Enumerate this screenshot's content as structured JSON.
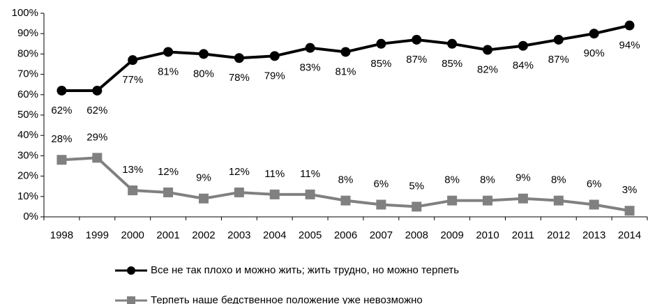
{
  "chart_data": {
    "type": "line",
    "categories": [
      "1998",
      "1999",
      "2000",
      "2001",
      "2002",
      "2003",
      "2004",
      "2005",
      "2006",
      "2007",
      "2008",
      "2009",
      "2010",
      "2011",
      "2012",
      "2013",
      "2014"
    ],
    "series": [
      {
        "name": "Все не так плохо и можно жить; жить трудно, но можно терпеть",
        "color": "#000000",
        "marker": "circle",
        "values": [
          62,
          62,
          77,
          81,
          80,
          78,
          79,
          83,
          81,
          85,
          87,
          85,
          82,
          84,
          87,
          90,
          94
        ],
        "value_labels": [
          "62%",
          "62%",
          "77%",
          "81%",
          "80%",
          "78%",
          "79%",
          "83%",
          "81%",
          "85%",
          "87%",
          "85%",
          "82%",
          "84%",
          "87%",
          "90%",
          "94%"
        ]
      },
      {
        "name": "Терпеть наше бедственное положение уже невозможно",
        "color": "#808080",
        "marker": "square",
        "values": [
          28,
          29,
          13,
          12,
          9,
          12,
          11,
          11,
          8,
          6,
          5,
          8,
          8,
          9,
          8,
          6,
          3
        ],
        "value_labels": [
          "28%",
          "29%",
          "13%",
          "12%",
          "9%",
          "12%",
          "11%",
          "11%",
          "8%",
          "6%",
          "5%",
          "8%",
          "8%",
          "9%",
          "8%",
          "6%",
          "3%"
        ]
      }
    ],
    "ylim": [
      0,
      100
    ],
    "yticks": [
      {
        "value": 0,
        "label": "0%"
      },
      {
        "value": 10,
        "label": "10%"
      },
      {
        "value": 20,
        "label": "20%"
      },
      {
        "value": 30,
        "label": "30%"
      },
      {
        "value": 40,
        "label": "40%"
      },
      {
        "value": 50,
        "label": "50%"
      },
      {
        "value": 60,
        "label": "60%"
      },
      {
        "value": 70,
        "label": "70%"
      },
      {
        "value": 80,
        "label": "80%"
      },
      {
        "value": 90,
        "label": "90%"
      },
      {
        "value": 100,
        "label": "100%"
      }
    ],
    "legend": "bottom"
  }
}
